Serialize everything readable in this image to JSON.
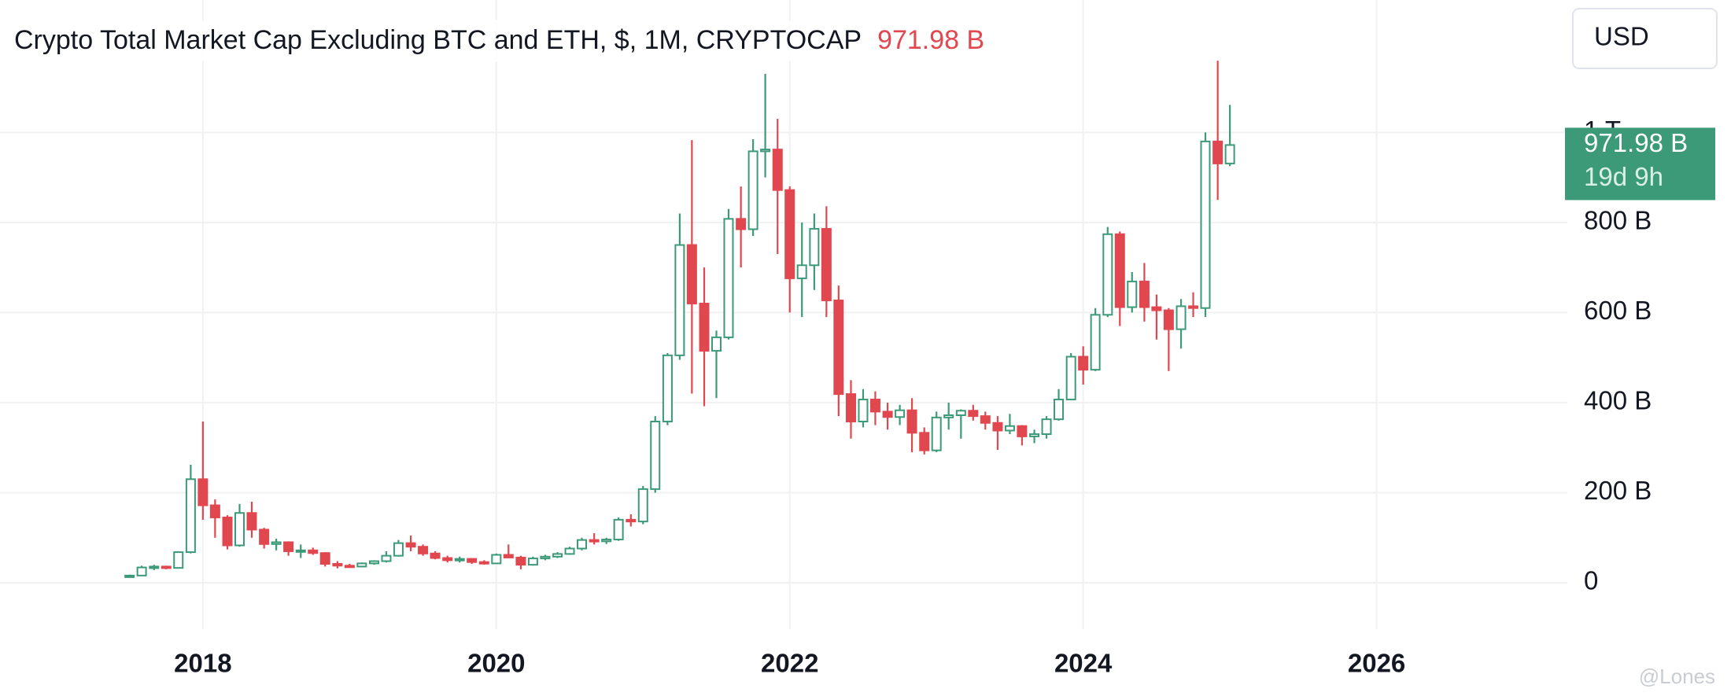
{
  "chart_data": {
    "type": "candlestick",
    "title": "Crypto Total Market Cap Excluding BTC and ETH, $, 1M, CRYPTOCAP",
    "last_label": "971.98 B",
    "countdown": "19d 9h",
    "currency_button": "USD",
    "watermark": "@Lones",
    "up_color": "#3d9a78",
    "down_color": "#e0474f",
    "grid": true,
    "xlim": [
      2016.617,
      2027.3
    ],
    "xticks": [
      2018,
      2020,
      2022,
      2024,
      2026
    ],
    "ylim": [
      -103,
      1294
    ],
    "yticks": [
      0,
      {
        "value": 200,
        "label": "200 B"
      },
      {
        "value": 400,
        "label": "400 B"
      },
      {
        "value": 600,
        "label": "600 B"
      },
      {
        "value": 800,
        "label": "800 B"
      },
      {
        "value": 1000,
        "label": "1 T"
      }
    ],
    "x": [
      2017.5,
      2017.583,
      2017.667,
      2017.75,
      2017.833,
      2017.917,
      2018,
      2018.083,
      2018.167,
      2018.25,
      2018.333,
      2018.417,
      2018.5,
      2018.583,
      2018.667,
      2018.75,
      2018.833,
      2018.917,
      2019,
      2019.083,
      2019.167,
      2019.25,
      2019.333,
      2019.417,
      2019.5,
      2019.583,
      2019.667,
      2019.75,
      2019.833,
      2019.917,
      2020,
      2020.083,
      2020.167,
      2020.25,
      2020.333,
      2020.417,
      2020.5,
      2020.583,
      2020.667,
      2020.75,
      2020.833,
      2020.917,
      2021,
      2021.083,
      2021.167,
      2021.25,
      2021.333,
      2021.417,
      2021.5,
      2021.583,
      2021.667,
      2021.75,
      2021.833,
      2021.917,
      2022,
      2022.083,
      2022.167,
      2022.25,
      2022.333,
      2022.417,
      2022.5,
      2022.583,
      2022.667,
      2022.75,
      2022.833,
      2022.917,
      2023,
      2023.083,
      2023.167,
      2023.25,
      2023.333,
      2023.417,
      2023.5,
      2023.583,
      2023.667,
      2023.75,
      2023.833,
      2023.917,
      2024,
      2024.083,
      2024.167,
      2024.25,
      2024.333,
      2024.417,
      2024.5,
      2024.583,
      2024.667,
      2024.75,
      2024.833,
      2024.917,
      2025
    ],
    "open": [
      14,
      16,
      34,
      36,
      33,
      68,
      230,
      172,
      145,
      83,
      155,
      118,
      86,
      90,
      70,
      72,
      66,
      42,
      38,
      36,
      43,
      48,
      60,
      88,
      80,
      65,
      55,
      50,
      53,
      46,
      43,
      62,
      56,
      40,
      54,
      58,
      64,
      76,
      95,
      92,
      96,
      140,
      136,
      208,
      358,
      505,
      750,
      620,
      515,
      545,
      808,
      785,
      958,
      962,
      872,
      676,
      705,
      786,
      627,
      419,
      358,
      407,
      380,
      368,
      383,
      333,
      294,
      367,
      372,
      382,
      370,
      355,
      338,
      348,
      325,
      330,
      363,
      407,
      502,
      473,
      595,
      774,
      612,
      669,
      612,
      605,
      563,
      614,
      610,
      980,
      931
    ],
    "high": [
      18,
      38,
      40,
      38,
      70,
      262,
      358,
      185,
      150,
      175,
      180,
      122,
      98,
      92,
      85,
      78,
      68,
      48,
      42,
      45,
      50,
      70,
      95,
      105,
      85,
      70,
      60,
      58,
      55,
      50,
      65,
      85,
      60,
      58,
      62,
      68,
      80,
      100,
      110,
      100,
      145,
      152,
      215,
      370,
      510,
      820,
      983,
      700,
      560,
      830,
      880,
      985,
      1130,
      1030,
      880,
      800,
      820,
      836,
      660,
      450,
      430,
      425,
      400,
      395,
      410,
      345,
      380,
      400,
      385,
      395,
      380,
      370,
      375,
      350,
      340,
      370,
      430,
      510,
      525,
      610,
      790,
      780,
      690,
      710,
      640,
      610,
      630,
      645,
      1000,
      1159,
      1061
    ],
    "low": [
      12,
      15,
      28,
      30,
      32,
      65,
      140,
      100,
      74,
      80,
      100,
      76,
      72,
      60,
      55,
      62,
      36,
      32,
      33,
      35,
      40,
      45,
      58,
      70,
      60,
      52,
      45,
      45,
      42,
      40,
      42,
      55,
      30,
      38,
      50,
      55,
      62,
      72,
      85,
      86,
      93,
      125,
      130,
      200,
      350,
      495,
      420,
      392,
      410,
      540,
      700,
      770,
      900,
      730,
      600,
      590,
      650,
      590,
      370,
      320,
      345,
      350,
      340,
      350,
      290,
      285,
      290,
      340,
      320,
      360,
      340,
      295,
      330,
      305,
      310,
      320,
      360,
      405,
      440,
      470,
      590,
      570,
      600,
      580,
      540,
      470,
      520,
      590,
      590,
      850,
      925
    ],
    "close": [
      16,
      34,
      36,
      33,
      68,
      230,
      172,
      145,
      83,
      155,
      118,
      86,
      90,
      70,
      72,
      66,
      42,
      38,
      36,
      43,
      48,
      60,
      88,
      80,
      65,
      55,
      50,
      53,
      46,
      43,
      62,
      56,
      40,
      54,
      58,
      64,
      76,
      95,
      92,
      96,
      140,
      136,
      208,
      358,
      505,
      750,
      620,
      515,
      545,
      808,
      785,
      958,
      962,
      872,
      676,
      705,
      786,
      627,
      419,
      358,
      407,
      380,
      368,
      383,
      333,
      294,
      367,
      372,
      382,
      370,
      355,
      338,
      348,
      325,
      330,
      363,
      407,
      502,
      473,
      595,
      774,
      612,
      669,
      612,
      605,
      563,
      614,
      610,
      980,
      931,
      971.98
    ]
  }
}
